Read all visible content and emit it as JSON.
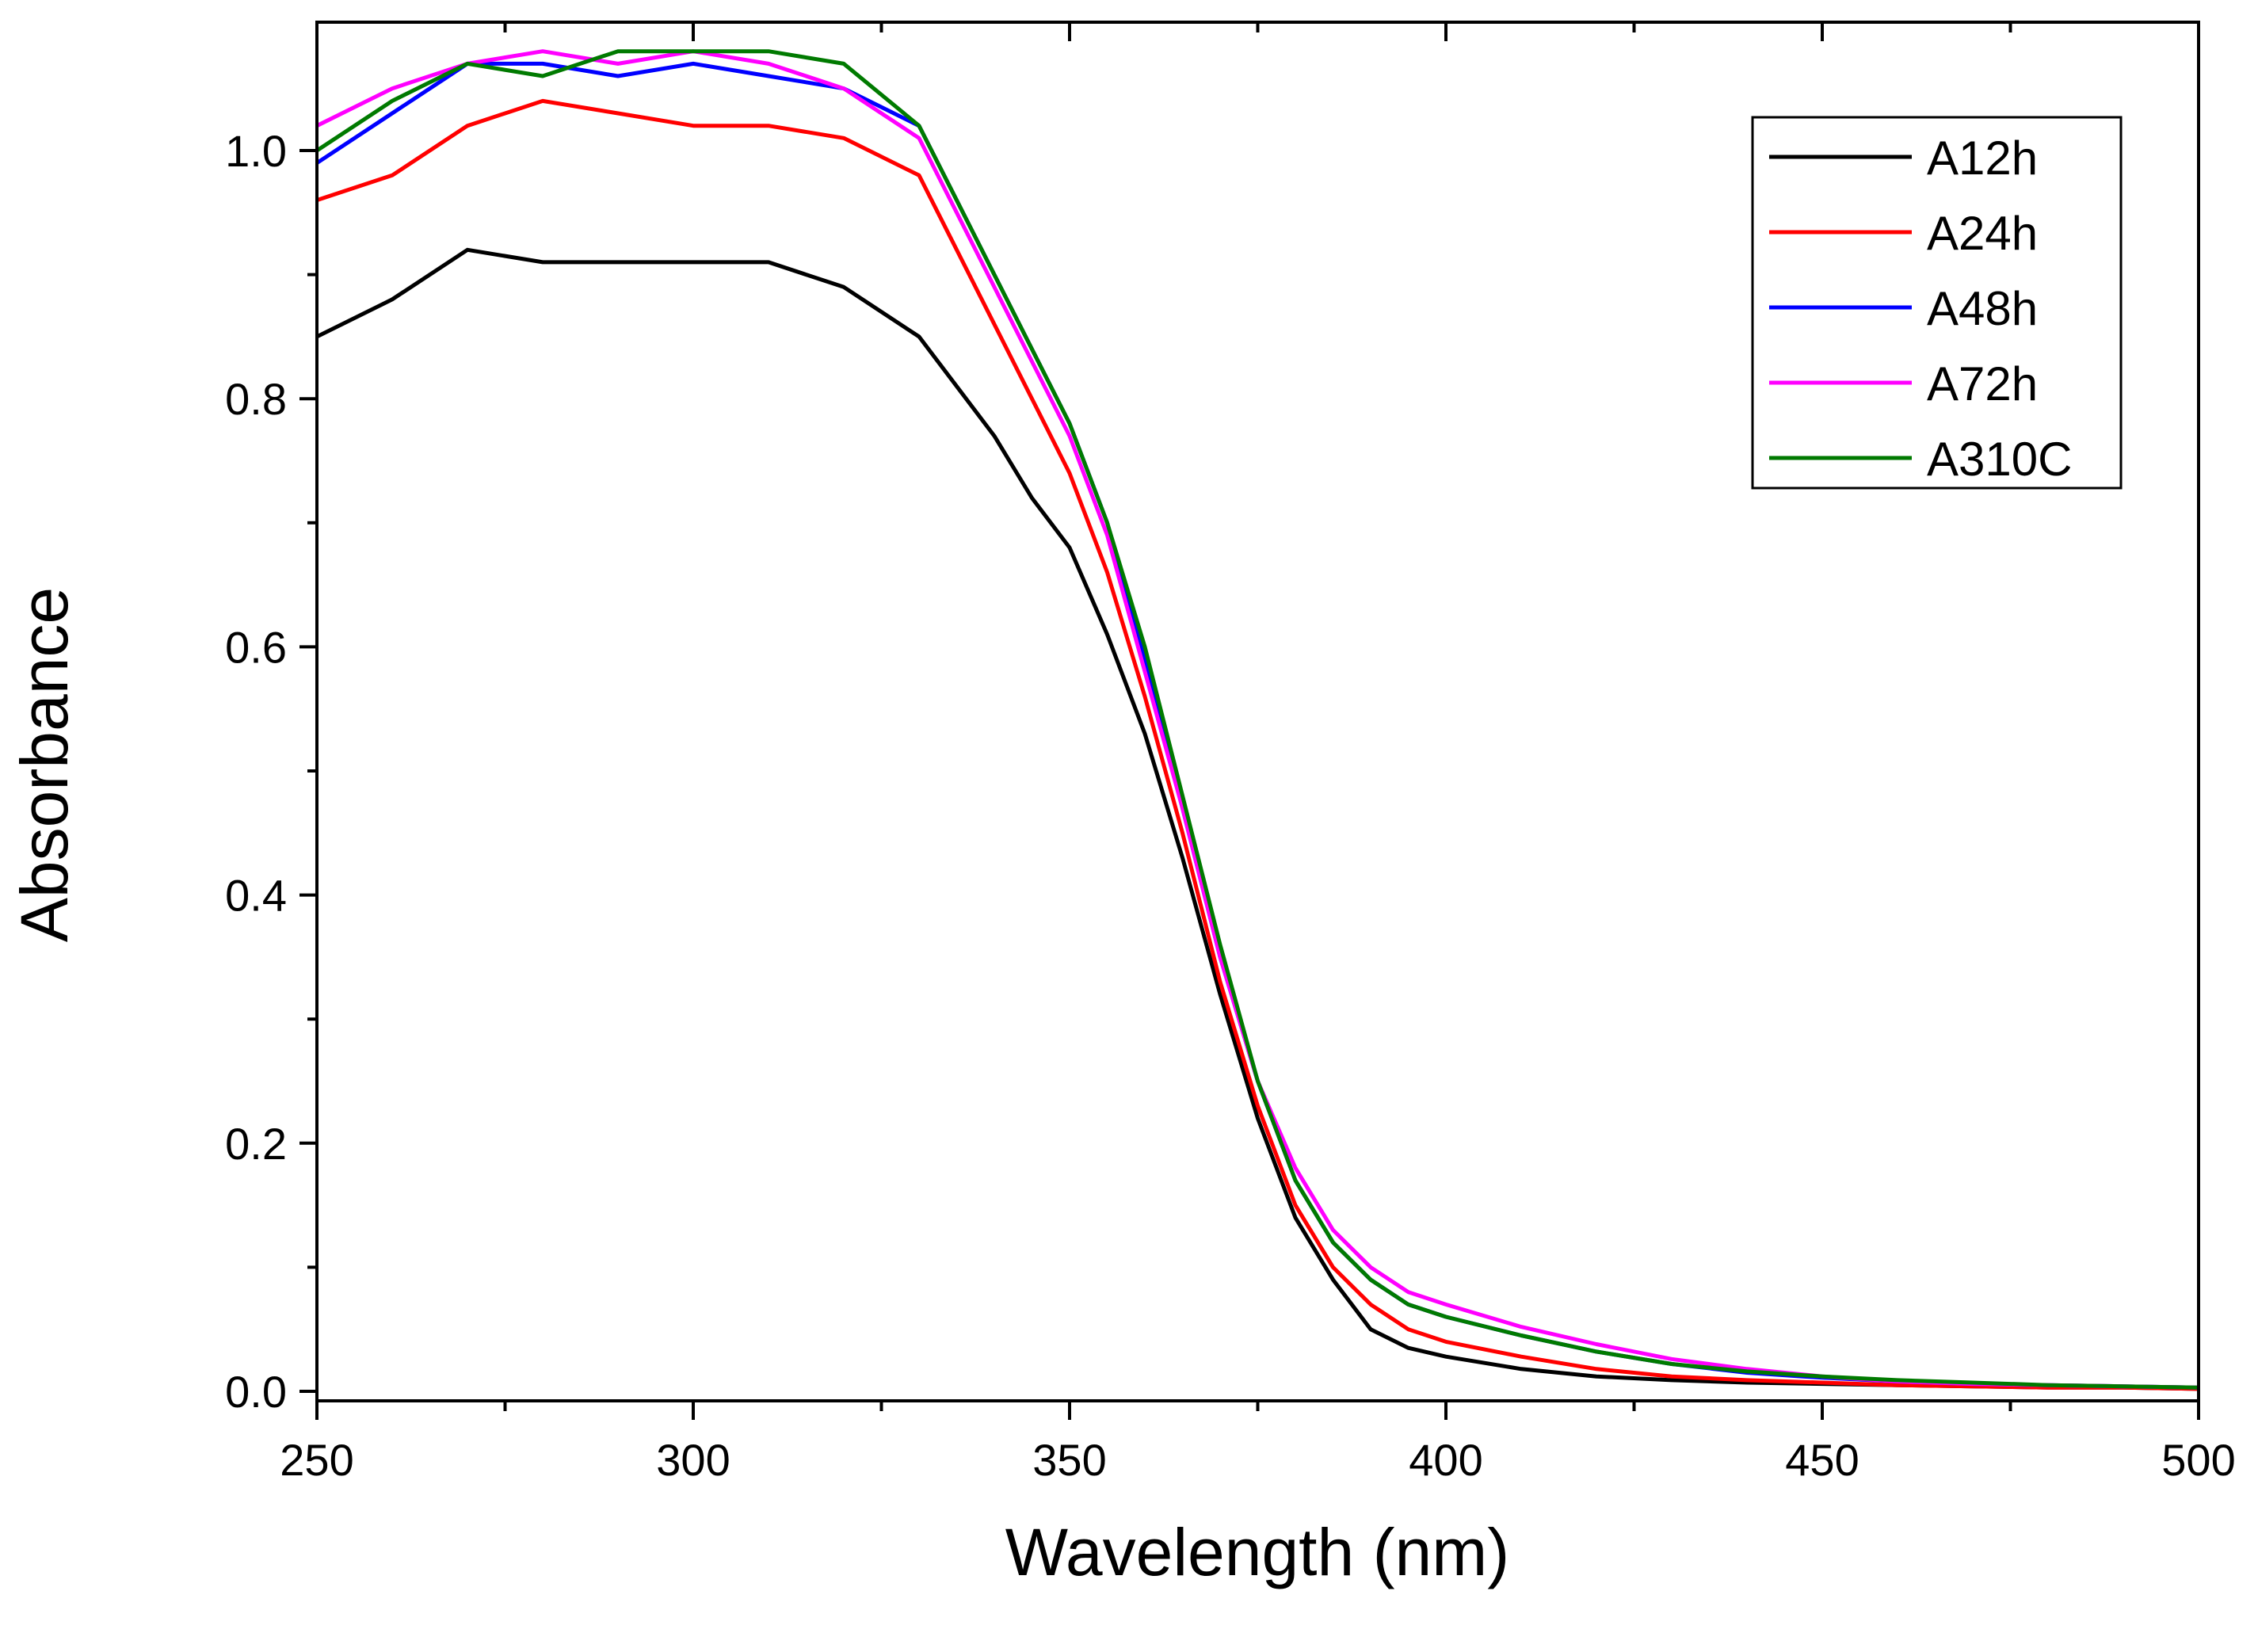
{
  "chart_data": {
    "type": "line",
    "title": "",
    "xlabel": "Wavelength (nm)",
    "ylabel": "Absorbance",
    "xlim": [
      250,
      500
    ],
    "ylim": [
      -0.01,
      1.1
    ],
    "grid": false,
    "legend_position": "top-right",
    "x_ticks": [
      {
        "value": 250,
        "label": "250"
      },
      {
        "value": 300,
        "label": "300"
      },
      {
        "value": 350,
        "label": "350"
      },
      {
        "value": 400,
        "label": "400"
      },
      {
        "value": 450,
        "label": "450"
      },
      {
        "value": 500,
        "label": "500"
      }
    ],
    "y_ticks": [
      {
        "value": 0.0,
        "label": "0.0"
      },
      {
        "value": 0.2,
        "label": "0.2"
      },
      {
        "value": 0.4,
        "label": "0.4"
      },
      {
        "value": 0.6,
        "label": "0.6"
      },
      {
        "value": 0.8,
        "label": "0.8"
      },
      {
        "value": 1.0,
        "label": "1.0"
      }
    ],
    "x": [
      250,
      260,
      270,
      280,
      290,
      300,
      310,
      320,
      330,
      340,
      345,
      350,
      355,
      360,
      365,
      370,
      375,
      380,
      385,
      390,
      395,
      400,
      410,
      420,
      430,
      440,
      450,
      460,
      470,
      480,
      490,
      500
    ],
    "series": [
      {
        "name": "A12h",
        "color": "#000000",
        "values": [
          0.85,
          0.88,
          0.92,
          0.91,
          0.91,
          0.91,
          0.91,
          0.89,
          0.85,
          0.77,
          0.72,
          0.68,
          0.61,
          0.53,
          0.43,
          0.32,
          0.22,
          0.14,
          0.09,
          0.05,
          0.035,
          0.028,
          0.018,
          0.012,
          0.009,
          0.007,
          0.006,
          0.005,
          0.004,
          0.003,
          0.003,
          0.002
        ]
      },
      {
        "name": "A24h",
        "color": "#ff0000",
        "values": [
          0.96,
          0.98,
          1.02,
          1.04,
          1.03,
          1.02,
          1.02,
          1.01,
          0.98,
          0.86,
          0.8,
          0.74,
          0.66,
          0.56,
          0.45,
          0.33,
          0.23,
          0.15,
          0.1,
          0.07,
          0.05,
          0.04,
          0.028,
          0.018,
          0.012,
          0.009,
          0.007,
          0.005,
          0.004,
          0.003,
          0.003,
          0.002
        ]
      },
      {
        "name": "A48h",
        "color": "#0000ff",
        "values": [
          0.99,
          1.03,
          1.07,
          1.07,
          1.06,
          1.07,
          1.06,
          1.05,
          1.02,
          0.9,
          0.84,
          0.78,
          0.7,
          0.59,
          0.47,
          0.35,
          0.25,
          0.17,
          0.12,
          0.09,
          0.07,
          0.06,
          0.045,
          0.032,
          0.022,
          0.015,
          0.011,
          0.008,
          0.006,
          0.005,
          0.004,
          0.003
        ]
      },
      {
        "name": "A72h",
        "color": "#ff00ff",
        "values": [
          1.02,
          1.05,
          1.07,
          1.08,
          1.07,
          1.08,
          1.07,
          1.05,
          1.01,
          0.89,
          0.83,
          0.77,
          0.69,
          0.58,
          0.47,
          0.35,
          0.25,
          0.18,
          0.13,
          0.1,
          0.08,
          0.07,
          0.052,
          0.038,
          0.026,
          0.018,
          0.012,
          0.008,
          0.006,
          0.005,
          0.004,
          0.003
        ]
      },
      {
        "name": "A310C",
        "color": "#007a00",
        "values": [
          1.0,
          1.04,
          1.07,
          1.06,
          1.08,
          1.08,
          1.08,
          1.07,
          1.02,
          0.9,
          0.84,
          0.78,
          0.7,
          0.6,
          0.48,
          0.36,
          0.25,
          0.17,
          0.12,
          0.09,
          0.07,
          0.06,
          0.045,
          0.032,
          0.022,
          0.016,
          0.012,
          0.009,
          0.007,
          0.005,
          0.004,
          0.003
        ]
      }
    ]
  }
}
